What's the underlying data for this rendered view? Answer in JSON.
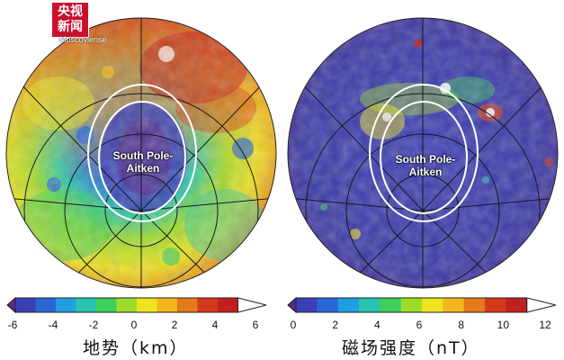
{
  "watermark": {
    "line1": "央视",
    "line2": "新闻"
  },
  "left_map": {
    "feature_label_line1": "South Pole-",
    "feature_label_line2": "Aitken",
    "place_label": "Moscoviense",
    "colorbar": {
      "ticks": [
        "-6",
        "-4",
        "-2",
        "0",
        "2",
        "4",
        "6"
      ],
      "title": "地势（km）",
      "range": [
        -6,
        6
      ],
      "colors": [
        "#5b2a86",
        "#3b3fb5",
        "#2a67d6",
        "#1f9fe0",
        "#28c4b0",
        "#3fcf5a",
        "#9fdc2a",
        "#eee31f",
        "#f5b51d",
        "#e57a1a",
        "#d33a1a",
        "#c21f1f",
        "#ffffff"
      ]
    }
  },
  "right_map": {
    "feature_label_line1": "South Pole-",
    "feature_label_line2": "Aitken",
    "colorbar": {
      "ticks": [
        "0",
        "2",
        "4",
        "6",
        "8",
        "10",
        "12"
      ],
      "title": "磁场强度（nT）",
      "range": [
        0,
        12
      ],
      "colors": [
        "#5b2a86",
        "#3b3fb5",
        "#2a67d6",
        "#1f9fe0",
        "#28c4b0",
        "#3fcf5a",
        "#9fdc2a",
        "#eee31f",
        "#f5b51d",
        "#e57a1a",
        "#d33a1a",
        "#c21f1f",
        "#ffffff"
      ]
    }
  }
}
